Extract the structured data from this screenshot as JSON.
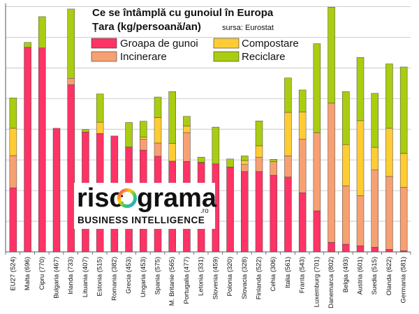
{
  "chart_data": {
    "type": "bar",
    "stacked": true,
    "title_line1": "Ce se întâmplă cu gunoiul în Europa",
    "title_line2": "Țara (kg/persoană/an)",
    "source": "sursa: Eurostat",
    "ylim": [
      0,
      810
    ],
    "grid": true,
    "legend_position": "top-right",
    "categories": [
      "EU27 (524)",
      "Malta (696)",
      "Cipru (770)",
      "Bulgaria (467)",
      "Irlanda (733)",
      "Lituania (407)",
      "Estonia (515)",
      "Romania (382)",
      "Grecia (453)",
      "Ungaria (453)",
      "Spania (575)",
      "M. Britanie (565)",
      "Portugalia (477)",
      "Letonia (331)",
      "Slovenia (459)",
      "Polonia (320)",
      "Slovacia (328)",
      "Finlanda (522)",
      "Cehia (306)",
      "Italia (561)",
      "Franta (543)",
      "Luxemburg (701)",
      "Danemarca (802)",
      "Belgia (493)",
      "Austria (601)",
      "Suedia (515)",
      "Olanda (622)",
      "Germania (581)"
    ],
    "series": [
      {
        "name": "Groapa de gunoi",
        "color": "#ff3366",
        "values": [
          209,
          667,
          665,
          403,
          545,
          391,
          386,
          378,
          342,
          332,
          312,
          296,
          295,
          291,
          287,
          277,
          262,
          262,
          250,
          244,
          193,
          134,
          31,
          25,
          20,
          15,
          8,
          4
        ]
      },
      {
        "name": "Incinerare",
        "color": "#f7a072",
        "values": [
          105,
          0,
          0,
          0,
          21,
          0,
          0,
          0,
          0,
          36,
          43,
          0,
          94,
          0,
          0,
          0,
          23,
          47,
          44,
          69,
          175,
          255,
          454,
          190,
          163,
          252,
          238,
          207
        ]
      },
      {
        "name": "Compostare",
        "color": "#ffcc33",
        "values": [
          89,
          0,
          0,
          0,
          0,
          0,
          37,
          0,
          0,
          6,
          83,
          58,
          21,
          1,
          0,
          0,
          13,
          37,
          0,
          142,
          88,
          0,
          0,
          135,
          245,
          74,
          157,
          110
        ]
      },
      {
        "name": "Reciclare",
        "color": "#aacc11",
        "values": [
          99,
          16,
          102,
          0,
          226,
          8,
          92,
          0,
          80,
          52,
          67,
          169,
          32,
          17,
          120,
          26,
          15,
          81,
          8,
          112,
          72,
          290,
          313,
          173,
          206,
          176,
          210,
          282
        ]
      }
    ]
  },
  "logo": {
    "text_before": "risc",
    "text_after": "grama",
    "suffix": ".ro",
    "tagline": "BUSINESS INTELLIGENCE"
  }
}
